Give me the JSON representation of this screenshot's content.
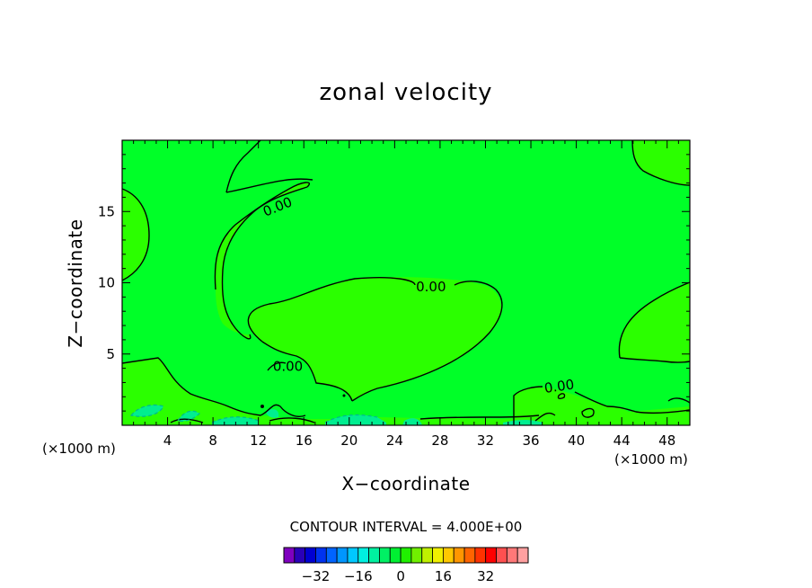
{
  "chart_data": {
    "type": "contour",
    "title": "zonal velocity",
    "xlabel": "X−coordinate",
    "ylabel": "Z−coordinate",
    "x_unit_label": "(×1000 m)",
    "xlim": [
      0,
      50
    ],
    "ylim": [
      0,
      20
    ],
    "x_ticks": [
      4,
      8,
      12,
      16,
      20,
      24,
      28,
      32,
      36,
      40,
      44,
      48
    ],
    "y_ticks": [
      5,
      10,
      15
    ],
    "contour_labels": [
      {
        "text": "0.00",
        "x": 13.7,
        "z": 15.3
      },
      {
        "text": "0.00",
        "x": 27.2,
        "z": 9.7
      },
      {
        "text": "0.00",
        "x": 14.6,
        "z": 4.1
      },
      {
        "text": "0.00",
        "x": 38.5,
        "z": 2.7
      }
    ],
    "contour_interval_text": "CONTOUR INTERVAL = 4.000E+00",
    "colorbar": {
      "tick_labels": [
        "−32",
        "−16",
        "0",
        "16",
        "32"
      ],
      "tick_values": [
        -32,
        -16,
        0,
        16,
        32
      ],
      "colors": [
        "#7f00bf",
        "#2a00b8",
        "#0000d2",
        "#0032f0",
        "#0064ff",
        "#0096ff",
        "#00c8ff",
        "#00f0e0",
        "#00f0a0",
        "#00f064",
        "#00f032",
        "#20f000",
        "#70f000",
        "#c0f000",
        "#f0f000",
        "#ffc800",
        "#ff9600",
        "#ff6400",
        "#ff3200",
        "#ff0000",
        "#ff5050",
        "#ff7878",
        "#ffa0a0"
      ]
    },
    "fill_colors": {
      "positive": "#2bff00",
      "near_zero": "#00ff28",
      "negative": "#00ee90"
    }
  }
}
